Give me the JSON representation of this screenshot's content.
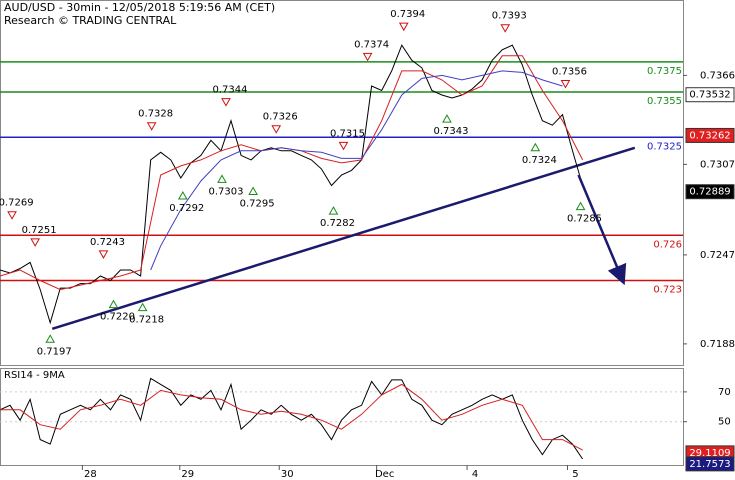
{
  "header": {
    "title": "AUD/USD - 30min - 12/05/2018 5:19:56 AM (CET)",
    "subtitle": "Research © TRADING CENTRAL"
  },
  "chart_data": [
    {
      "type": "line",
      "xlim": [
        0,
        68
      ],
      "ylim": [
        0.7174,
        0.7416
      ],
      "yticks": [
        0.7366,
        0.7307,
        0.7247,
        0.7188
      ],
      "series": [
        {
          "color": "#000000",
          "x": [
            0,
            1,
            2,
            3,
            4,
            5,
            6,
            7,
            8,
            9,
            10,
            11,
            12,
            13,
            14,
            15,
            16,
            17,
            18,
            19,
            20,
            21,
            22,
            23,
            24,
            25,
            26,
            27,
            28,
            29,
            30,
            31,
            32,
            33,
            34,
            35,
            36,
            37,
            38,
            39,
            40,
            41,
            42,
            43,
            44,
            45,
            46,
            47,
            48,
            49,
            50,
            51,
            52,
            53,
            54,
            55,
            56,
            57,
            58
          ],
          "values": [
            0.7237,
            0.7235,
            0.7238,
            0.7242,
            0.7224,
            0.7202,
            0.7225,
            0.7225,
            0.7228,
            0.7228,
            0.7233,
            0.723,
            0.7237,
            0.7237,
            0.7233,
            0.731,
            0.7315,
            0.731,
            0.7298,
            0.7308,
            0.7313,
            0.7323,
            0.7316,
            0.7336,
            0.7313,
            0.731,
            0.7316,
            0.7318,
            0.7316,
            0.7316,
            0.7313,
            0.731,
            0.7304,
            0.7293,
            0.73,
            0.7303,
            0.731,
            0.7359,
            0.7356,
            0.7369,
            0.7386,
            0.7376,
            0.7371,
            0.7356,
            0.7353,
            0.7351,
            0.7353,
            0.7357,
            0.7363,
            0.7376,
            0.7383,
            0.7386,
            0.7373,
            0.7353,
            0.7336,
            0.7333,
            0.734,
            0.7316,
            0.7293
          ]
        },
        {
          "color": "#d62020",
          "x": [
            0,
            2,
            4,
            6,
            8,
            10,
            12,
            14,
            16,
            18,
            20,
            22,
            24,
            26,
            28,
            30,
            32,
            34,
            36,
            38,
            40,
            42,
            44,
            46,
            48,
            50,
            52,
            54,
            56,
            58
          ],
          "values": [
            0.7233,
            0.7237,
            0.723,
            0.7224,
            0.7227,
            0.723,
            0.7233,
            0.7237,
            0.73,
            0.7306,
            0.731,
            0.7316,
            0.732,
            0.7316,
            0.7318,
            0.7316,
            0.7311,
            0.7308,
            0.731,
            0.7336,
            0.7369,
            0.7369,
            0.7363,
            0.7353,
            0.7359,
            0.7379,
            0.7379,
            0.7356,
            0.7336,
            0.731
          ]
        },
        {
          "color": "#4040c0",
          "x": [
            15,
            16,
            18,
            20,
            22,
            24,
            26,
            28,
            30,
            32,
            34,
            36,
            38,
            40,
            42,
            44,
            46,
            48,
            50,
            52,
            54,
            56
          ],
          "values": [
            0.7237,
            0.7253,
            0.7277,
            0.7296,
            0.731,
            0.7316,
            0.7316,
            0.7318,
            0.7316,
            0.7315,
            0.7311,
            0.7311,
            0.733,
            0.7353,
            0.7364,
            0.7366,
            0.7363,
            0.7366,
            0.7369,
            0.7368,
            0.7363,
            0.7359
          ]
        }
      ],
      "levels": [
        {
          "value": 0.7375,
          "color": "#1a8c1a"
        },
        {
          "value": 0.7355,
          "color": "#1a8c1a"
        },
        {
          "value": 0.7325,
          "color": "#2020c8"
        },
        {
          "value": 0.726,
          "color": "#d01010"
        },
        {
          "value": 0.723,
          "color": "#d01010"
        }
      ],
      "price_labels": [
        {
          "value": 0.73532,
          "color": "#ffffff"
        },
        {
          "value": 0.73262,
          "color": "#e02020"
        },
        {
          "value": 0.72889,
          "color": "#000000"
        }
      ],
      "pivots": [
        {
          "x": 1.2,
          "value": 0.7269,
          "label": "0.7269",
          "dir": "high"
        },
        {
          "x": 3.5,
          "value": 0.7251,
          "label": "0.7251",
          "dir": "high"
        },
        {
          "x": 10.3,
          "value": 0.7243,
          "label": "0.7243",
          "dir": "high"
        },
        {
          "x": 15.1,
          "value": 0.7328,
          "label": "0.7328",
          "dir": "high"
        },
        {
          "x": 22.5,
          "value": 0.7344,
          "label": "0.7344",
          "dir": "high"
        },
        {
          "x": 27.5,
          "value": 0.7326,
          "label": "0.7326",
          "dir": "high"
        },
        {
          "x": 34.2,
          "value": 0.7315,
          "label": "0.7315",
          "dir": "high"
        },
        {
          "x": 36.6,
          "value": 0.7374,
          "label": "0.7374",
          "dir": "high"
        },
        {
          "x": 40.2,
          "value": 0.7394,
          "label": "0.7394",
          "dir": "high"
        },
        {
          "x": 50.3,
          "value": 0.7393,
          "label": "0.7393",
          "dir": "high"
        },
        {
          "x": 56.3,
          "value": 0.7356,
          "label": "0.7356",
          "dir": "high"
        },
        {
          "x": 5.0,
          "value": 0.7197,
          "label": "0.7197",
          "dir": "low"
        },
        {
          "x": 11.3,
          "value": 0.722,
          "label": "0.7220",
          "dir": "low"
        },
        {
          "x": 14.2,
          "value": 0.7218,
          "label": "0.7218",
          "dir": "low"
        },
        {
          "x": 18.2,
          "value": 0.7292,
          "label": "0.7292",
          "dir": "low"
        },
        {
          "x": 22.1,
          "value": 0.7303,
          "label": "0.7303",
          "dir": "low"
        },
        {
          "x": 25.2,
          "value": 0.7295,
          "label": "0.7295",
          "dir": "low"
        },
        {
          "x": 33.2,
          "value": 0.7282,
          "label": "0.7282",
          "dir": "low"
        },
        {
          "x": 44.5,
          "value": 0.7343,
          "label": "0.7343",
          "dir": "low"
        },
        {
          "x": 53.3,
          "value": 0.7324,
          "label": "0.7324",
          "dir": "low"
        },
        {
          "x": 57.8,
          "value": 0.7285,
          "label": "0.7285",
          "dir": "low"
        }
      ],
      "trendline": {
        "x": [
          5.2,
          63.2
        ],
        "values": [
          0.7198,
          0.7318
        ],
        "color": "#1a1a6e"
      },
      "arrow": {
        "x": [
          57.6,
          62.0
        ],
        "values": [
          0.73,
          0.723
        ],
        "color": "#1a1a6e"
      }
    },
    {
      "type": "line",
      "title": "RSI14 - 9MA",
      "xlim": [
        0,
        68
      ],
      "ylim": [
        21,
        86
      ],
      "yticks": [
        70,
        50
      ],
      "xticks": [
        {
          "value": 8.2,
          "label": "28"
        },
        {
          "value": 17.9,
          "label": "29"
        },
        {
          "value": 27.8,
          "label": "30"
        },
        {
          "value": 37.5,
          "label": "Dec"
        },
        {
          "value": 46.5,
          "label": "4"
        },
        {
          "value": 56.5,
          "label": "5"
        }
      ],
      "series": [
        {
          "color": "#000000",
          "x": [
            0,
            1,
            2,
            3,
            4,
            5,
            6,
            7,
            8,
            9,
            10,
            11,
            12,
            13,
            14,
            15,
            16,
            17,
            18,
            19,
            20,
            21,
            22,
            23,
            24,
            25,
            26,
            27,
            28,
            29,
            30,
            31,
            32,
            33,
            34,
            35,
            36,
            37,
            38,
            39,
            40,
            41,
            42,
            43,
            44,
            45,
            46,
            47,
            48,
            49,
            50,
            51,
            52,
            53,
            54,
            55,
            56,
            57,
            58
          ],
          "values": [
            58,
            61,
            51,
            65,
            38,
            35,
            55,
            58,
            61,
            58,
            65,
            58,
            68,
            65,
            51,
            79,
            75,
            71,
            61,
            68,
            65,
            71,
            58,
            75,
            45,
            51,
            58,
            55,
            61,
            55,
            51,
            55,
            48,
            38,
            51,
            58,
            61,
            77,
            68,
            78,
            78,
            65,
            61,
            51,
            48,
            55,
            58,
            61,
            65,
            68,
            65,
            68,
            51,
            38,
            28,
            38,
            41,
            35,
            25
          ]
        },
        {
          "color": "#d62020",
          "x": [
            0,
            2,
            4,
            6,
            8,
            10,
            12,
            14,
            16,
            18,
            20,
            22,
            24,
            26,
            28,
            30,
            32,
            34,
            36,
            38,
            40,
            42,
            44,
            46,
            48,
            50,
            52,
            54,
            56,
            58
          ],
          "values": [
            58,
            58,
            48,
            45,
            58,
            61,
            65,
            61,
            71,
            68,
            66,
            65,
            58,
            55,
            57,
            55,
            51,
            45,
            55,
            68,
            75,
            65,
            51,
            55,
            61,
            65,
            61,
            38,
            38,
            31
          ]
        }
      ],
      "price_labels": [
        {
          "value": 29.1109,
          "color": "#e02020"
        },
        {
          "value": 21.7573,
          "color": "#1a1a80"
        }
      ]
    }
  ]
}
